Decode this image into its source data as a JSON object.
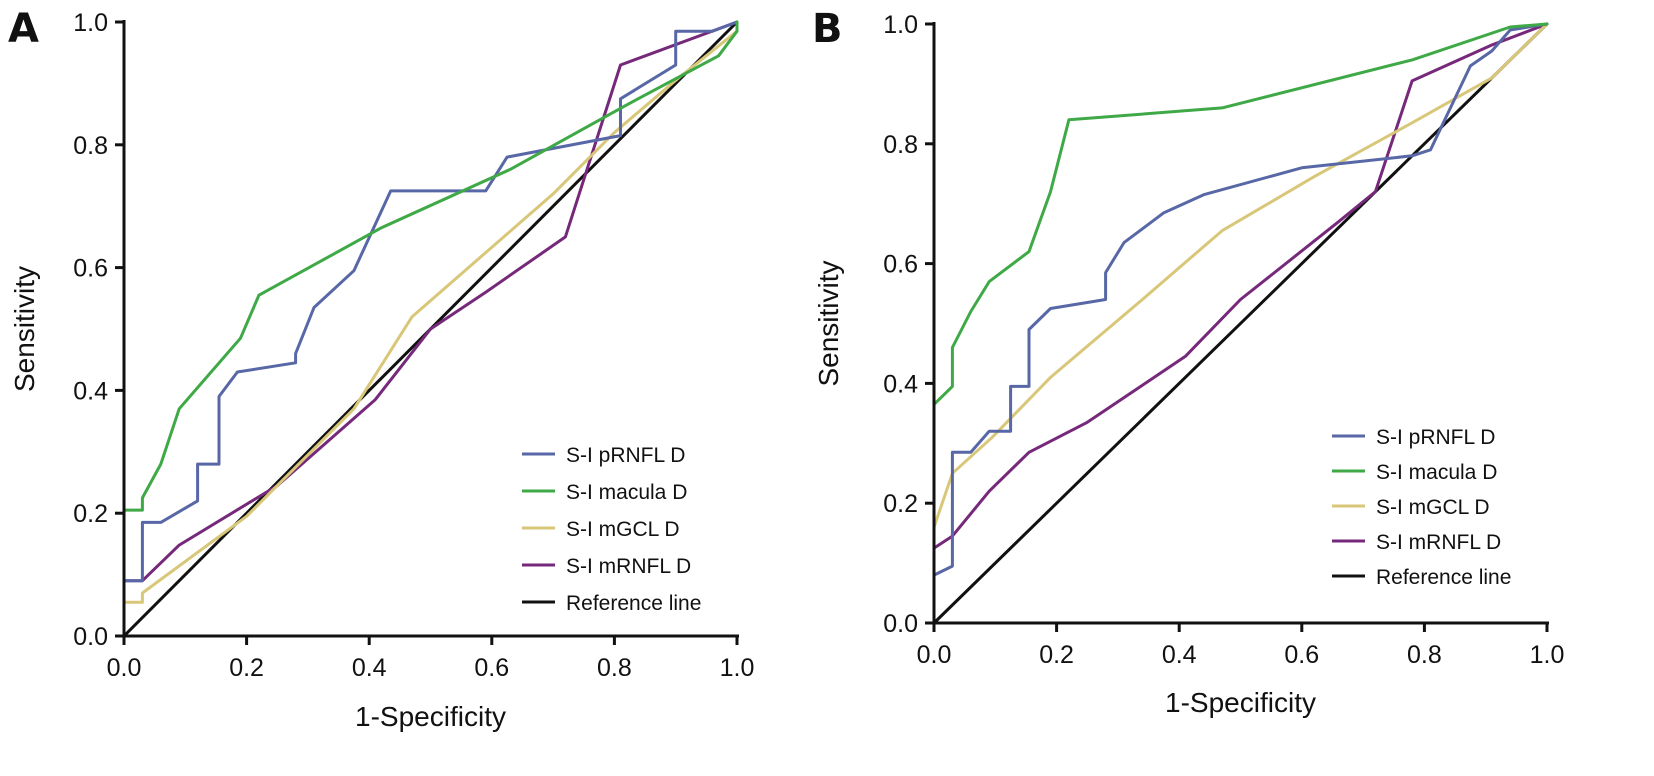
{
  "chart_data": [
    {
      "type": "line",
      "panel_label": "A",
      "xlabel": "1-Specificity",
      "ylabel": "Sensitivity",
      "xlim": [
        0,
        1
      ],
      "ylim": [
        0,
        1
      ],
      "xticks": [
        "0.0",
        "0.2",
        "0.4",
        "0.6",
        "0.8",
        "1.0"
      ],
      "yticks": [
        "0.0",
        "0.2",
        "0.4",
        "0.6",
        "0.8",
        "1.0"
      ],
      "grid": false,
      "legend_position": "bottom-right",
      "series": [
        {
          "name": "S-I pRNFL D",
          "color": "#5867a6",
          "points": [
            [
              0,
              0
            ],
            [
              0,
              0.09
            ],
            [
              0.03,
              0.09
            ],
            [
              0.03,
              0.185
            ],
            [
              0.06,
              0.185
            ],
            [
              0.12,
              0.22
            ],
            [
              0.12,
              0.28
            ],
            [
              0.155,
              0.28
            ],
            [
              0.155,
              0.39
            ],
            [
              0.185,
              0.43
            ],
            [
              0.28,
              0.445
            ],
            [
              0.28,
              0.46
            ],
            [
              0.31,
              0.535
            ],
            [
              0.375,
              0.595
            ],
            [
              0.435,
              0.725
            ],
            [
              0.59,
              0.725
            ],
            [
              0.625,
              0.78
            ],
            [
              0.81,
              0.815
            ],
            [
              0.81,
              0.875
            ],
            [
              0.9,
              0.93
            ],
            [
              0.9,
              0.985
            ],
            [
              0.96,
              0.985
            ],
            [
              1,
              1
            ]
          ]
        },
        {
          "name": "S-I macula D",
          "color": "#3ea946",
          "points": [
            [
              0,
              0
            ],
            [
              0,
              0.205
            ],
            [
              0.03,
              0.205
            ],
            [
              0.03,
              0.225
            ],
            [
              0.06,
              0.28
            ],
            [
              0.09,
              0.37
            ],
            [
              0.19,
              0.485
            ],
            [
              0.22,
              0.555
            ],
            [
              0.42,
              0.665
            ],
            [
              0.63,
              0.76
            ],
            [
              0.82,
              0.865
            ],
            [
              0.97,
              0.945
            ],
            [
              1,
              0.985
            ],
            [
              1,
              1
            ]
          ]
        },
        {
          "name": "S-I mGCL D",
          "color": "#d9c779",
          "points": [
            [
              0,
              0
            ],
            [
              0,
              0.055
            ],
            [
              0.03,
              0.055
            ],
            [
              0.03,
              0.07
            ],
            [
              0.2,
              0.195
            ],
            [
              0.375,
              0.37
            ],
            [
              0.47,
              0.52
            ],
            [
              0.7,
              0.72
            ],
            [
              0.8,
              0.82
            ],
            [
              0.9,
              0.905
            ],
            [
              1,
              0.985
            ],
            [
              1,
              1
            ]
          ]
        },
        {
          "name": "S-I mRNFL D",
          "color": "#76297a",
          "points": [
            [
              0,
              0
            ],
            [
              0,
              0.09
            ],
            [
              0.03,
              0.09
            ],
            [
              0.09,
              0.148
            ],
            [
              0.25,
              0.245
            ],
            [
              0.41,
              0.385
            ],
            [
              0.5,
              0.5
            ],
            [
              0.59,
              0.56
            ],
            [
              0.72,
              0.65
            ],
            [
              0.81,
              0.93
            ],
            [
              1,
              1
            ]
          ]
        },
        {
          "name": "Reference line",
          "color": "#111111",
          "points": [
            [
              0,
              0
            ],
            [
              1,
              1
            ]
          ]
        }
      ]
    },
    {
      "type": "line",
      "panel_label": "B",
      "xlabel": "1-Specificity",
      "ylabel": "Sensitivity",
      "xlim": [
        0,
        1
      ],
      "ylim": [
        0,
        1
      ],
      "xticks": [
        "0.0",
        "0.2",
        "0.4",
        "0.6",
        "0.8",
        "1.0"
      ],
      "yticks": [
        "0.0",
        "0.2",
        "0.4",
        "0.6",
        "0.8",
        "1.0"
      ],
      "grid": false,
      "legend_position": "bottom-right",
      "series": [
        {
          "name": "S-I pRNFL D",
          "color": "#5867a6",
          "points": [
            [
              0,
              0
            ],
            [
              0,
              0.08
            ],
            [
              0.03,
              0.095
            ],
            [
              0.03,
              0.285
            ],
            [
              0.06,
              0.285
            ],
            [
              0.09,
              0.32
            ],
            [
              0.125,
              0.32
            ],
            [
              0.125,
              0.395
            ],
            [
              0.155,
              0.395
            ],
            [
              0.155,
              0.49
            ],
            [
              0.19,
              0.525
            ],
            [
              0.28,
              0.54
            ],
            [
              0.28,
              0.585
            ],
            [
              0.31,
              0.635
            ],
            [
              0.375,
              0.685
            ],
            [
              0.44,
              0.715
            ],
            [
              0.6,
              0.76
            ],
            [
              0.78,
              0.78
            ],
            [
              0.81,
              0.79
            ],
            [
              0.875,
              0.93
            ],
            [
              0.91,
              0.955
            ],
            [
              0.94,
              0.99
            ],
            [
              1,
              1
            ]
          ]
        },
        {
          "name": "S-I macula D",
          "color": "#3ea946",
          "points": [
            [
              0,
              0
            ],
            [
              0,
              0.365
            ],
            [
              0.03,
              0.395
            ],
            [
              0.03,
              0.46
            ],
            [
              0.06,
              0.52
            ],
            [
              0.09,
              0.57
            ],
            [
              0.155,
              0.62
            ],
            [
              0.19,
              0.72
            ],
            [
              0.22,
              0.84
            ],
            [
              0.47,
              0.86
            ],
            [
              0.78,
              0.94
            ],
            [
              0.94,
              0.995
            ],
            [
              1,
              1
            ]
          ]
        },
        {
          "name": "S-I mGCL D",
          "color": "#d9c779",
          "points": [
            [
              0,
              0
            ],
            [
              0,
              0.16
            ],
            [
              0.03,
              0.25
            ],
            [
              0.095,
              0.31
            ],
            [
              0.19,
              0.41
            ],
            [
              0.34,
              0.54
            ],
            [
              0.47,
              0.655
            ],
            [
              0.62,
              0.745
            ],
            [
              0.78,
              0.835
            ],
            [
              0.91,
              0.91
            ],
            [
              1,
              1
            ]
          ]
        },
        {
          "name": "S-I mRNFL D",
          "color": "#76297a",
          "points": [
            [
              0,
              0
            ],
            [
              0,
              0.125
            ],
            [
              0.03,
              0.145
            ],
            [
              0.09,
              0.22
            ],
            [
              0.155,
              0.285
            ],
            [
              0.25,
              0.335
            ],
            [
              0.41,
              0.445
            ],
            [
              0.5,
              0.54
            ],
            [
              0.66,
              0.67
            ],
            [
              0.72,
              0.72
            ],
            [
              0.78,
              0.905
            ],
            [
              0.91,
              0.965
            ],
            [
              1,
              1
            ]
          ]
        },
        {
          "name": "Reference line",
          "color": "#111111",
          "points": [
            [
              0,
              0
            ],
            [
              1,
              1
            ]
          ]
        }
      ]
    }
  ]
}
